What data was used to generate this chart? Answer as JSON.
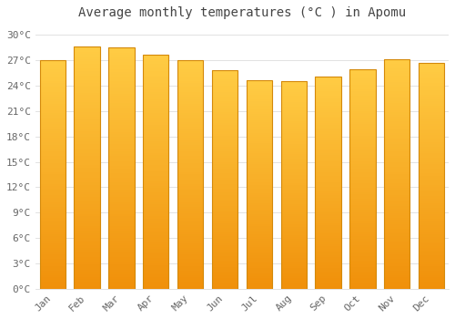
{
  "title": "Average monthly temperatures (°C ) in Apomu",
  "months": [
    "Jan",
    "Feb",
    "Mar",
    "Apr",
    "May",
    "Jun",
    "Jul",
    "Aug",
    "Sep",
    "Oct",
    "Nov",
    "Dec"
  ],
  "values": [
    27.0,
    28.6,
    28.5,
    27.7,
    27.0,
    25.8,
    24.6,
    24.5,
    25.1,
    25.9,
    27.1,
    26.7
  ],
  "bar_color_top": "#FFCC44",
  "bar_color_bottom": "#F0900A",
  "bar_edge_color": "#D4890A",
  "background_color": "#FFFFFF",
  "grid_color": "#DDDDDD",
  "text_color": "#666666",
  "title_color": "#444444",
  "ylim": [
    0,
    31
  ],
  "ytick_step": 3,
  "title_fontsize": 10,
  "tick_fontsize": 8,
  "bar_width": 0.75
}
